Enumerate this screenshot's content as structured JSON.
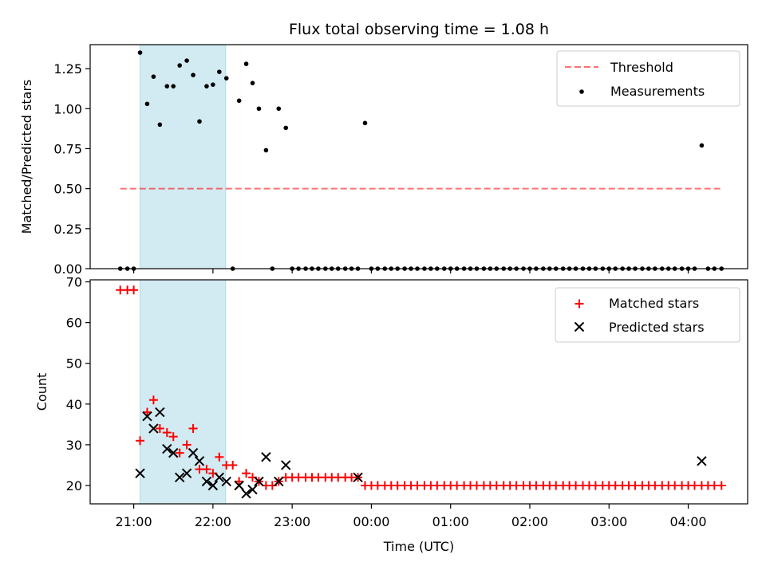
{
  "chart_data": [
    {
      "type": "scatter",
      "title": "Flux total observing time = 1.08 h",
      "xlabel": "",
      "ylabel": "Matched/Predicted stars",
      "ylim": [
        0,
        1.4
      ],
      "yticks": [
        "0.00",
        "0.25",
        "0.50",
        "0.75",
        "1.00",
        "1.25"
      ],
      "xlim_hours": [
        20.45,
        28.75
      ],
      "shaded_interval_hours": [
        21.08,
        22.16
      ],
      "shade_color": "#add8e6",
      "legend": {
        "placement": "top-right",
        "entries": [
          "Threshold",
          "Measurements"
        ]
      },
      "threshold": {
        "name": "Threshold",
        "value": 0.5,
        "x_from_hours": 20.83,
        "x_to_hours": 28.42,
        "color": "#ff0000",
        "style": "dashed",
        "alpha": 0.55
      },
      "series": [
        {
          "name": "Measurements",
          "color": "#000000",
          "marker": "dot",
          "x_hours": [
            20.83,
            20.92,
            21.0,
            21.08,
            21.17,
            21.25,
            21.33,
            21.42,
            21.5,
            21.58,
            21.67,
            21.75,
            21.83,
            21.92,
            22.0,
            22.08,
            22.17,
            22.25,
            22.33,
            22.42,
            22.5,
            22.58,
            22.67,
            22.75,
            22.83,
            22.92,
            23.0,
            23.08,
            23.17,
            23.25,
            23.33,
            23.42,
            23.5,
            23.58,
            23.67,
            23.75,
            23.83,
            23.92,
            24.0,
            24.08,
            24.17,
            24.25,
            24.33,
            24.42,
            24.5,
            24.58,
            24.67,
            24.75,
            24.83,
            24.92,
            25.0,
            25.08,
            25.17,
            25.25,
            25.33,
            25.42,
            25.5,
            25.58,
            25.67,
            25.75,
            25.83,
            25.92,
            26.0,
            26.08,
            26.17,
            26.25,
            26.33,
            26.42,
            26.5,
            26.58,
            26.67,
            26.75,
            26.83,
            26.92,
            27.0,
            27.08,
            27.17,
            27.25,
            27.33,
            27.42,
            27.5,
            27.58,
            27.67,
            27.75,
            27.83,
            27.92,
            28.0,
            28.08,
            28.17,
            28.25,
            28.33,
            28.42
          ],
          "y": [
            0,
            0,
            0,
            1.35,
            1.03,
            1.2,
            0.9,
            1.14,
            1.14,
            1.27,
            1.3,
            1.21,
            0.92,
            1.14,
            1.15,
            1.23,
            1.19,
            0,
            1.05,
            1.28,
            1.16,
            1.0,
            0.74,
            0,
            1.0,
            0.88,
            0,
            0,
            0,
            0,
            0,
            0,
            0,
            0,
            0,
            0,
            0,
            0.91,
            0,
            0,
            0,
            0,
            0,
            0,
            0,
            0,
            0,
            0,
            0,
            0,
            0,
            0,
            0,
            0,
            0,
            0,
            0,
            0,
            0,
            0,
            0,
            0,
            0,
            0,
            0,
            0,
            0,
            0,
            0,
            0,
            0,
            0,
            0,
            0,
            0,
            0,
            0,
            0,
            0,
            0,
            0,
            0,
            0,
            0,
            0,
            0,
            0,
            0,
            0.77,
            0,
            0,
            0
          ]
        }
      ]
    },
    {
      "type": "scatter",
      "title": "",
      "xlabel": "Time (UTC)",
      "ylabel": "Count",
      "ylim": [
        15.5,
        70.5
      ],
      "yticks": [
        "20",
        "30",
        "40",
        "50",
        "60",
        "70"
      ],
      "xlim_hours": [
        20.45,
        28.75
      ],
      "xticks": [
        {
          "hours": 21,
          "label": "21:00"
        },
        {
          "hours": 22,
          "label": "22:00"
        },
        {
          "hours": 23,
          "label": "23:00"
        },
        {
          "hours": 24,
          "label": "00:00"
        },
        {
          "hours": 25,
          "label": "01:00"
        },
        {
          "hours": 26,
          "label": "02:00"
        },
        {
          "hours": 27,
          "label": "03:00"
        },
        {
          "hours": 28,
          "label": "04:00"
        }
      ],
      "shaded_interval_hours": [
        21.08,
        22.16
      ],
      "shade_color": "#add8e6",
      "legend": {
        "placement": "top-right",
        "entries": [
          "Matched stars",
          "Predicted stars"
        ]
      },
      "series": [
        {
          "name": "Matched stars",
          "color": "#ff0000",
          "marker": "plus",
          "x_hours": [
            20.83,
            20.92,
            21.0,
            21.08,
            21.17,
            21.25,
            21.33,
            21.42,
            21.5,
            21.58,
            21.67,
            21.75,
            21.83,
            21.92,
            22.0,
            22.08,
            22.17,
            22.25,
            22.33,
            22.42,
            22.5,
            22.58,
            22.67,
            22.75,
            22.83,
            22.92,
            23.0,
            23.08,
            23.17,
            23.25,
            23.33,
            23.42,
            23.5,
            23.58,
            23.67,
            23.75,
            23.83,
            23.92,
            24.0,
            24.08,
            24.17,
            24.25,
            24.33,
            24.42,
            24.5,
            24.58,
            24.67,
            24.75,
            24.83,
            24.92,
            25.0,
            25.08,
            25.17,
            25.25,
            25.33,
            25.42,
            25.5,
            25.58,
            25.67,
            25.75,
            25.83,
            25.92,
            26.0,
            26.08,
            26.17,
            26.25,
            26.33,
            26.42,
            26.5,
            26.58,
            26.67,
            26.75,
            26.83,
            26.92,
            27.0,
            27.08,
            27.17,
            27.25,
            27.33,
            27.42,
            27.5,
            27.58,
            27.67,
            27.75,
            27.83,
            27.92,
            28.0,
            28.08,
            28.17,
            28.25,
            28.33,
            28.42
          ],
          "y": [
            68,
            68,
            68,
            31,
            38,
            41,
            34,
            33,
            32,
            28,
            30,
            34,
            24,
            24,
            23,
            27,
            25,
            25,
            21,
            23,
            22,
            21,
            20,
            20,
            21,
            22,
            22,
            22,
            22,
            22,
            22,
            22,
            22,
            22,
            22,
            22,
            22,
            20,
            20,
            20,
            20,
            20,
            20,
            20,
            20,
            20,
            20,
            20,
            20,
            20,
            20,
            20,
            20,
            20,
            20,
            20,
            20,
            20,
            20,
            20,
            20,
            20,
            20,
            20,
            20,
            20,
            20,
            20,
            20,
            20,
            20,
            20,
            20,
            20,
            20,
            20,
            20,
            20,
            20,
            20,
            20,
            20,
            20,
            20,
            20,
            20,
            20,
            20,
            20,
            20,
            20,
            20
          ]
        },
        {
          "name": "Predicted stars",
          "color": "#000000",
          "marker": "x",
          "x_hours": [
            21.08,
            21.17,
            21.25,
            21.33,
            21.42,
            21.5,
            21.58,
            21.67,
            21.75,
            21.83,
            21.92,
            22.0,
            22.08,
            22.17,
            22.33,
            22.42,
            22.5,
            22.58,
            22.67,
            22.83,
            22.92,
            23.83,
            28.17
          ],
          "y": [
            23,
            37,
            34,
            38,
            29,
            28,
            22,
            23,
            28,
            26,
            21,
            20,
            22,
            21,
            20,
            18,
            19,
            21,
            27,
            21,
            25,
            22,
            26
          ]
        }
      ]
    }
  ]
}
